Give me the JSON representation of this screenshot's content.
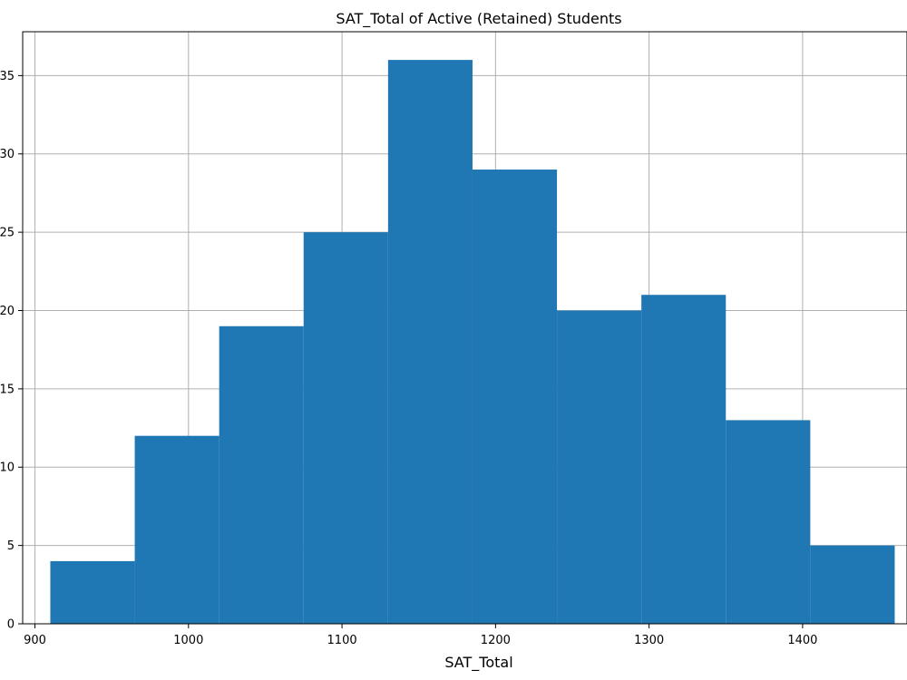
{
  "chart_data": {
    "type": "bar",
    "title": "SAT_Total of Active (Retained) Students",
    "xlabel": "SAT_Total",
    "ylabel": "",
    "bin_edges": [
      910,
      965,
      1020,
      1075,
      1130,
      1185,
      1240,
      1295,
      1350,
      1405,
      1460
    ],
    "values": [
      4,
      12,
      19,
      25,
      36,
      29,
      20,
      21,
      13,
      5
    ],
    "xlim": [
      892,
      1468
    ],
    "ylim": [
      0,
      37.8
    ],
    "xticks": [
      900,
      1000,
      1100,
      1200,
      1300,
      1400
    ],
    "xtick_labels": [
      "900",
      "1000",
      "1100",
      "1200",
      "1300",
      "1400"
    ],
    "yticks": [
      0,
      5,
      10,
      15,
      20,
      25,
      30,
      35
    ],
    "ytick_labels": [
      "0",
      "5",
      "10",
      "15",
      "20",
      "25",
      "30",
      "35"
    ],
    "grid": true,
    "bar_color": "#1f77b4"
  }
}
